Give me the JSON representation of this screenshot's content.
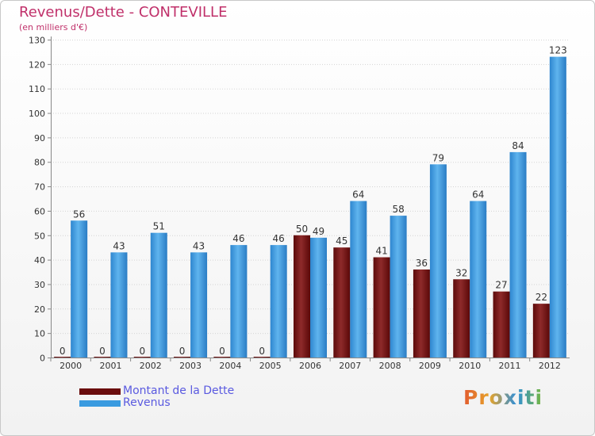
{
  "title": "Revenus/Dette - CONTEVILLE",
  "subtitle": "(en milliers d'€)",
  "brand": "Proxiti",
  "chart_data": {
    "type": "bar",
    "categories": [
      "2000",
      "2001",
      "2002",
      "2003",
      "2004",
      "2005",
      "2006",
      "2007",
      "2008",
      "2009",
      "2010",
      "2011",
      "2012"
    ],
    "series": [
      {
        "name": "Montant de la Dette",
        "color": "#7a1010",
        "values": [
          0,
          0,
          0,
          0,
          0,
          0,
          50,
          45,
          41,
          36,
          32,
          27,
          22
        ]
      },
      {
        "name": "Revenus",
        "color": "#3a9be0",
        "values": [
          56,
          43,
          51,
          43,
          46,
          46,
          49,
          64,
          58,
          79,
          64,
          84,
          123
        ]
      }
    ],
    "yticks": [
      0,
      10,
      20,
      30,
      40,
      50,
      60,
      70,
      80,
      90,
      100,
      110,
      120,
      130
    ],
    "ylim": [
      0,
      130
    ],
    "grid": true,
    "legend_position": "bottom-left"
  }
}
